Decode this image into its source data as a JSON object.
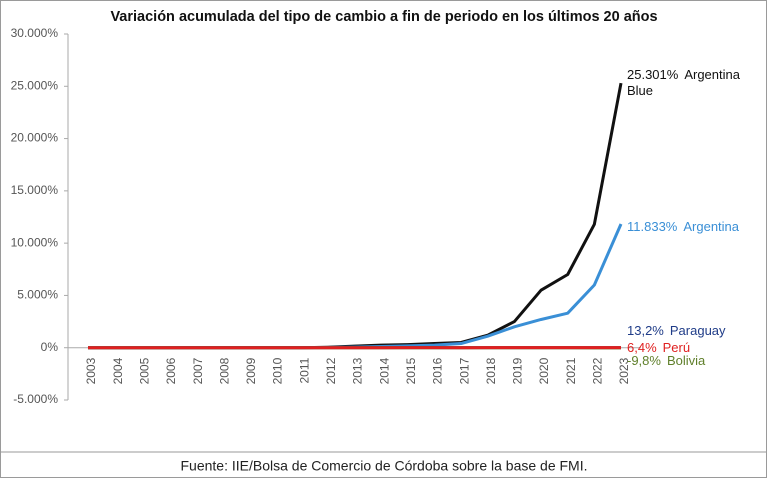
{
  "chart_data": {
    "type": "line",
    "title": "Variación acumulada del tipo de cambio a fin de periodo en los últimos 20 años",
    "source": "Fuente: IIE/Bolsa de Comercio de Córdoba sobre la base de FMI.",
    "categories": [
      "2003",
      "2004",
      "2005",
      "2006",
      "2007",
      "2008",
      "2009",
      "2010",
      "2011",
      "2012",
      "2013",
      "2014",
      "2015",
      "2016",
      "2017",
      "2018",
      "2019",
      "2020",
      "2021",
      "2022",
      "2023"
    ],
    "series": [
      {
        "name": "Argentina Blue",
        "color": "#111111",
        "values": [
          0,
          0,
          0,
          0,
          0,
          0,
          0,
          0,
          0,
          50,
          150,
          250,
          300,
          400,
          500,
          1200,
          2500,
          5500,
          7000,
          11800,
          25301
        ],
        "value_labels": [
          null,
          null,
          null,
          null,
          null,
          null,
          null,
          null,
          null,
          null,
          null,
          null,
          null,
          null,
          null,
          null,
          null,
          null,
          null,
          null,
          "25.301%"
        ]
      },
      {
        "name": "Argentina",
        "color": "#3a8fd6",
        "values": [
          0,
          0,
          0,
          0,
          0,
          0,
          0,
          0,
          0,
          20,
          60,
          120,
          180,
          250,
          400,
          1100,
          2000,
          2700,
          3300,
          6000,
          11833
        ],
        "value_labels": [
          null,
          null,
          null,
          null,
          null,
          null,
          null,
          null,
          null,
          null,
          null,
          null,
          null,
          null,
          null,
          null,
          null,
          null,
          null,
          null,
          "11.833%"
        ]
      },
      {
        "name": "Paraguay",
        "color": "#1f3c88",
        "values": [
          0,
          1,
          2,
          2,
          3,
          3,
          4,
          4,
          5,
          5,
          6,
          6,
          7,
          8,
          8,
          9,
          10,
          10,
          11,
          12,
          13.2
        ],
        "value_labels": [
          null,
          null,
          null,
          null,
          null,
          null,
          null,
          null,
          null,
          null,
          null,
          null,
          null,
          null,
          null,
          null,
          null,
          null,
          null,
          null,
          "13,2%"
        ]
      },
      {
        "name": "Bolivia",
        "color": "#5f7f2a",
        "values": [
          0,
          -1,
          -2,
          -3,
          -5,
          -7,
          -8,
          -8,
          -9,
          -9,
          -9,
          -9,
          -9,
          -9,
          -9,
          -9,
          -9,
          -9,
          -9,
          -9.5,
          -9.8
        ],
        "value_labels": [
          null,
          null,
          null,
          null,
          null,
          null,
          null,
          null,
          null,
          null,
          null,
          null,
          null,
          null,
          null,
          null,
          null,
          null,
          null,
          null,
          "-9,8%"
        ]
      },
      {
        "name": "Perú",
        "color": "#e02020",
        "values": [
          0,
          -1,
          -2,
          -3,
          -4,
          -3,
          -4,
          -5,
          -4,
          -6,
          -3,
          1,
          5,
          4,
          2,
          4,
          6,
          3,
          8,
          7,
          6.4
        ],
        "value_labels": [
          null,
          null,
          null,
          null,
          null,
          null,
          null,
          null,
          null,
          null,
          null,
          null,
          null,
          null,
          null,
          null,
          null,
          null,
          null,
          null,
          "6,4%"
        ]
      }
    ],
    "ylim": [
      -5000,
      30000
    ],
    "yticks": [
      {
        "value": -5000,
        "label": "-5.000%"
      },
      {
        "value": 0,
        "label": "0%"
      },
      {
        "value": 5000,
        "label": "5.000%"
      },
      {
        "value": 10000,
        "label": "10.000%"
      },
      {
        "value": 15000,
        "label": "15.000%"
      },
      {
        "value": 20000,
        "label": "20.000%"
      },
      {
        "value": 25000,
        "label": "25.000%"
      },
      {
        "value": 30000,
        "label": "30.000%"
      }
    ],
    "grid": false
  }
}
